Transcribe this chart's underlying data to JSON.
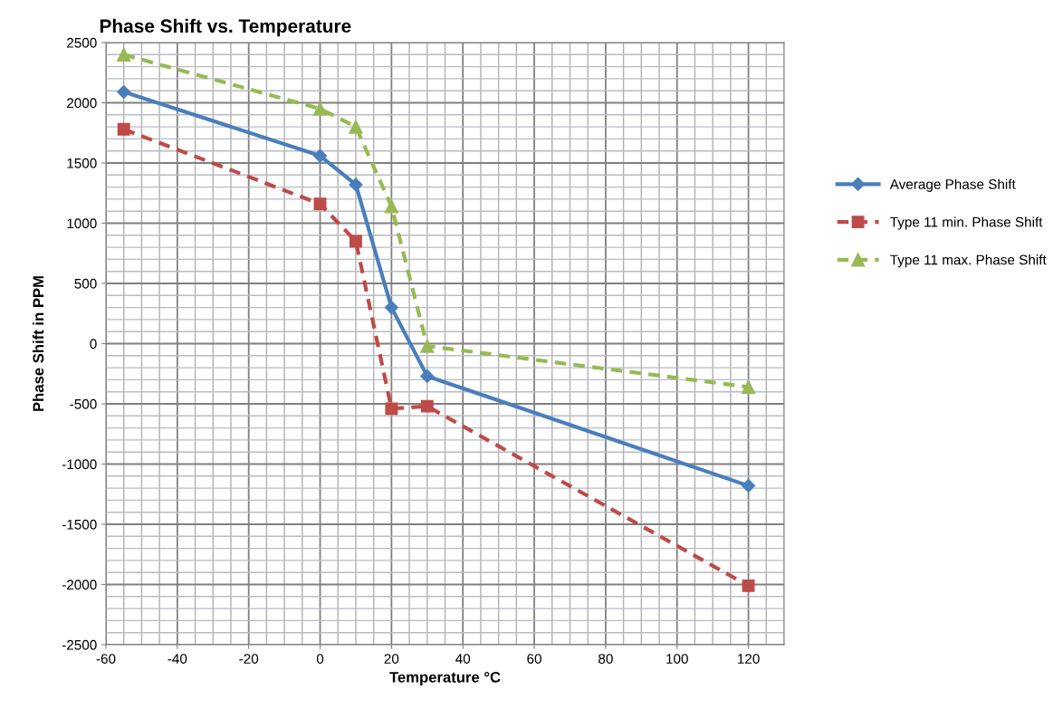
{
  "chart_data": {
    "type": "line",
    "title": "Phase Shift vs. Temperature",
    "xlabel": "Temperature °C",
    "ylabel": "Phase Shift in PPM",
    "x": [
      -55,
      0,
      10,
      20,
      30,
      120
    ],
    "series": [
      {
        "name": "Average Phase Shift",
        "color": "#4a7ebb",
        "values": [
          2090,
          1560,
          1320,
          300,
          -270,
          -1180
        ],
        "marker": "diamond",
        "line_style": "solid"
      },
      {
        "name": "Type 11 min. Phase Shift",
        "color": "#be4b48",
        "values": [
          1780,
          1160,
          850,
          -540,
          -520,
          -2010
        ],
        "marker": "square",
        "line_style": "dashed"
      },
      {
        "name": "Type 11 max. Phase Shift",
        "color": "#98b954",
        "values": [
          2400,
          1950,
          1800,
          1140,
          -20,
          -360
        ],
        "marker": "triangle",
        "line_style": "dashed"
      }
    ],
    "xlim": [
      -60,
      130
    ],
    "xticks": [
      -60,
      -40,
      -20,
      0,
      20,
      40,
      60,
      80,
      100,
      120
    ],
    "ylim": [
      -2500,
      2500
    ],
    "yticks": [
      -2500,
      -2000,
      -1500,
      -1000,
      -500,
      0,
      500,
      1000,
      1500,
      2000,
      2500
    ],
    "grid": true,
    "legend": "right"
  }
}
